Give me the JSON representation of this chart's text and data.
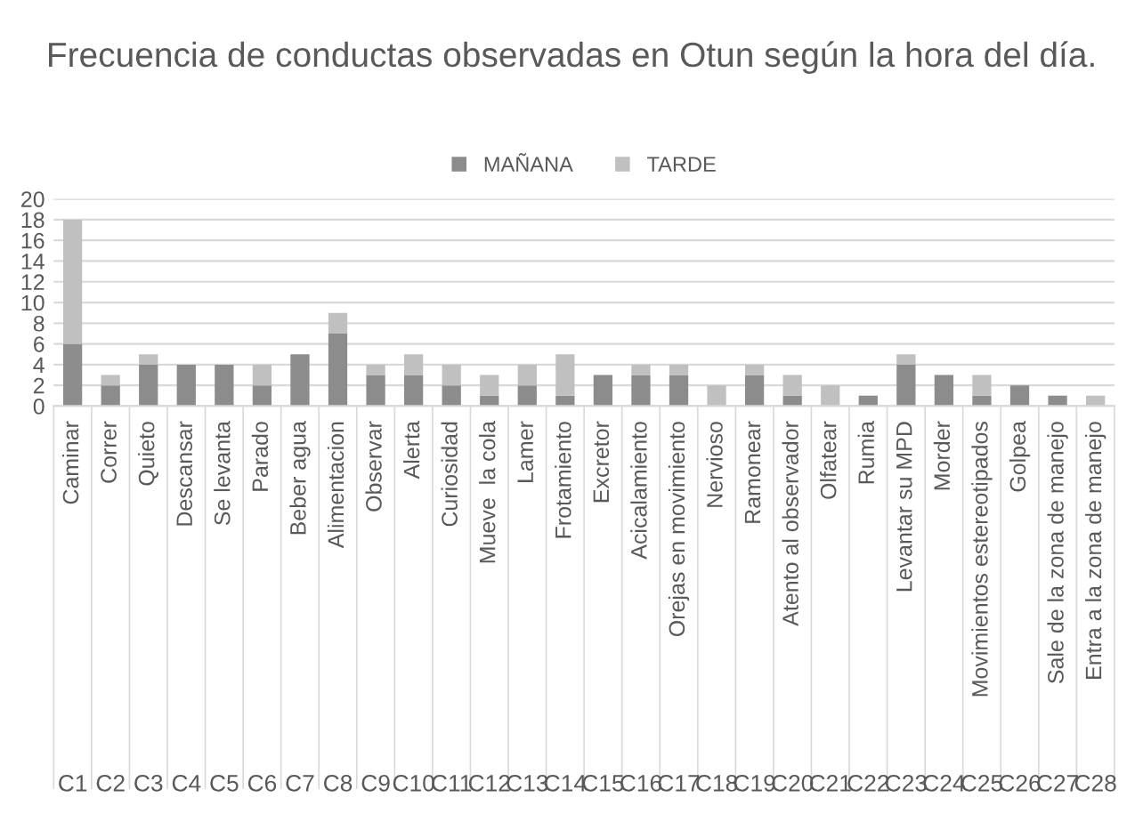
{
  "chart_data": {
    "type": "bar",
    "title": "Frecuencia de conductas observadas en Otun según la hora del día.",
    "categories": [
      "Caminar",
      "Correr",
      "Quieto",
      "Descansar",
      "Se levanta",
      "Parado",
      "Beber agua",
      "Alimentacion",
      "Observar",
      "Alerta",
      "Curiosidad",
      "Mueve  la cola",
      "Lamer",
      "Frotamiento",
      "Excretor",
      "Acicalamiento",
      "Orejas en movimiento",
      "Nervioso",
      "Ramonear",
      "Atento al observador",
      "Olfatear",
      "Rumia",
      "Levantar su MPD",
      "Morder",
      "Movimientos estereotipados",
      "Golpea",
      "Sale de la zona de manejo",
      "Entra a la zona de manejo"
    ],
    "series": [
      {
        "name": "MAÑANA",
        "color": "#8c8c8c",
        "values": [
          6,
          2,
          4,
          4,
          4,
          2,
          5,
          7,
          3,
          3,
          2,
          1,
          2,
          1,
          3,
          3,
          3,
          0,
          3,
          1,
          0,
          1,
          4,
          3,
          1,
          2,
          1,
          0
        ]
      },
      {
        "name": "TARDE",
        "color": "#c0c0c0",
        "values": [
          12,
          1,
          1,
          0,
          0,
          2,
          0,
          2,
          1,
          2,
          2,
          2,
          2,
          4,
          0,
          1,
          1,
          2,
          1,
          2,
          2,
          0,
          1,
          0,
          2,
          0,
          0,
          1
        ]
      }
    ],
    "stacked": true,
    "ylim": [
      0,
      20
    ],
    "yticks": [
      0,
      2,
      4,
      6,
      8,
      10,
      12,
      14,
      16,
      18,
      20
    ],
    "grid": "y",
    "legend": "top",
    "annotations": [
      "C1",
      "C2",
      "C3",
      "C4",
      "C5",
      "C6",
      "C7",
      "C8",
      "C9",
      "C10",
      "C11",
      "C12",
      "C13",
      "C14",
      "C15",
      "C16",
      "C17",
      "C18",
      "C19",
      "C20",
      "C21",
      "C22",
      "C23",
      "C24",
      "C25",
      "C26",
      "C27",
      "C28"
    ]
  }
}
